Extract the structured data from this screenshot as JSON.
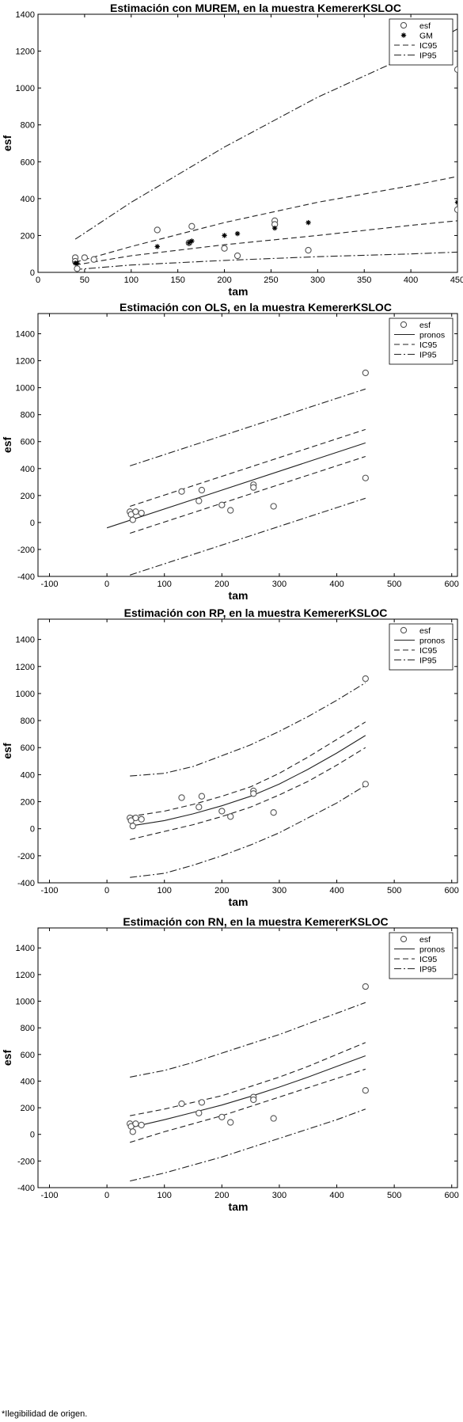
{
  "chart_data": [
    {
      "type": "scatter",
      "title": "Estimación con MUREM, en la muestra KemererKSLOC",
      "xlabel": "tam",
      "ylabel": "esf",
      "xlim": [
        0,
        450
      ],
      "ylim": [
        0,
        1400
      ],
      "xticks": [
        0,
        50,
        100,
        150,
        200,
        250,
        300,
        350,
        400,
        450
      ],
      "yticks": [
        0,
        200,
        400,
        600,
        800,
        1000,
        1200,
        1400
      ],
      "legend": {
        "placement": "top-right",
        "entries": [
          "esf",
          "GM",
          "IC95",
          "IP95"
        ]
      },
      "series": [
        {
          "name": "esf",
          "style": "circle",
          "x": [
            40,
            40,
            42,
            50,
            60,
            128,
            162,
            165,
            200,
            214,
            254,
            254,
            290,
            450,
            450
          ],
          "y": [
            80,
            60,
            20,
            80,
            70,
            230,
            160,
            250,
            130,
            90,
            280,
            260,
            120,
            1100,
            340
          ]
        },
        {
          "name": "GM",
          "style": "star",
          "x": [
            40,
            42,
            128,
            162,
            165,
            200,
            214,
            254,
            290,
            450
          ],
          "y": [
            50,
            50,
            140,
            160,
            170,
            200,
            210,
            240,
            270,
            380
          ]
        },
        {
          "name": "IC95",
          "style": "dashed",
          "x": [
            40,
            100,
            200,
            300,
            400,
            450
          ],
          "y": [
            55,
            140,
            270,
            380,
            470,
            520
          ]
        },
        {
          "name": "IC95",
          "style": "dashed",
          "x": [
            40,
            100,
            200,
            300,
            400,
            450
          ],
          "y": [
            40,
            90,
            150,
            200,
            255,
            280
          ]
        },
        {
          "name": "IP95",
          "style": "dashdot",
          "x": [
            40,
            100,
            200,
            300,
            400,
            450
          ],
          "y": [
            180,
            380,
            680,
            950,
            1180,
            1320
          ]
        },
        {
          "name": "IP95",
          "style": "dashdot",
          "x": [
            40,
            100,
            200,
            300,
            400,
            450
          ],
          "y": [
            15,
            40,
            65,
            85,
            100,
            110
          ]
        }
      ]
    },
    {
      "type": "scatter",
      "title": "Estimación con OLS, en la muestra KemererKSLOC",
      "xlabel": "tam",
      "ylabel": "esf",
      "xlim": [
        -120,
        610
      ],
      "ylim": [
        -400,
        1550
      ],
      "xticks": [
        -100,
        0,
        100,
        200,
        300,
        400,
        500,
        600
      ],
      "yticks": [
        -400,
        -200,
        0,
        200,
        400,
        600,
        800,
        1000,
        1200,
        1400
      ],
      "legend": {
        "placement": "top-right",
        "entries": [
          "esf",
          "pronos",
          "IC95",
          "IP95"
        ]
      },
      "series": [
        {
          "name": "esf",
          "style": "circle",
          "x": [
            40,
            42,
            45,
            50,
            60,
            130,
            160,
            165,
            200,
            215,
            255,
            255,
            290,
            450,
            450
          ],
          "y": [
            80,
            60,
            20,
            80,
            70,
            230,
            160,
            240,
            130,
            90,
            280,
            260,
            120,
            1110,
            330
          ]
        },
        {
          "name": "pronos",
          "style": "solid",
          "x": [
            0,
            450
          ],
          "y": [
            -40,
            590
          ]
        },
        {
          "name": "IC95",
          "style": "dashed",
          "x": [
            40,
            450
          ],
          "y": [
            120,
            690
          ]
        },
        {
          "name": "IC95",
          "style": "dashed",
          "x": [
            40,
            450
          ],
          "y": [
            -80,
            490
          ]
        },
        {
          "name": "IP95",
          "style": "dashdot",
          "x": [
            40,
            450
          ],
          "y": [
            420,
            990
          ]
        },
        {
          "name": "IP95",
          "style": "dashdot",
          "x": [
            40,
            450
          ],
          "y": [
            -390,
            180
          ]
        }
      ]
    },
    {
      "type": "scatter",
      "title": "Estimación con RP, en la muestra KemererKSLOC",
      "xlabel": "tam",
      "ylabel": "esf",
      "xlim": [
        -120,
        610
      ],
      "ylim": [
        -400,
        1550
      ],
      "xticks": [
        -100,
        0,
        100,
        200,
        300,
        400,
        500,
        600
      ],
      "yticks": [
        -400,
        -200,
        0,
        200,
        400,
        600,
        800,
        1000,
        1200,
        1400
      ],
      "legend": {
        "placement": "top-right",
        "entries": [
          "esf",
          "pronos",
          "IC95",
          "IP95"
        ]
      },
      "series": [
        {
          "name": "esf",
          "style": "circle",
          "x": [
            40,
            42,
            45,
            50,
            60,
            130,
            160,
            165,
            200,
            215,
            255,
            255,
            290,
            450,
            450
          ],
          "y": [
            80,
            60,
            20,
            80,
            70,
            230,
            160,
            240,
            130,
            90,
            280,
            260,
            120,
            1110,
            330
          ]
        },
        {
          "name": "pronos",
          "style": "solid",
          "x": [
            40,
            100,
            150,
            200,
            250,
            300,
            350,
            400,
            450
          ],
          "y": [
            20,
            60,
            110,
            170,
            240,
            330,
            440,
            560,
            690
          ]
        },
        {
          "name": "IC95",
          "style": "dashed",
          "x": [
            40,
            100,
            150,
            200,
            250,
            300,
            350,
            400,
            450
          ],
          "y": [
            90,
            130,
            180,
            240,
            310,
            410,
            530,
            660,
            790
          ]
        },
        {
          "name": "IC95",
          "style": "dashed",
          "x": [
            40,
            100,
            150,
            200,
            250,
            300,
            350,
            400,
            450
          ],
          "y": [
            -80,
            -20,
            30,
            90,
            160,
            250,
            350,
            470,
            600
          ]
        },
        {
          "name": "IP95",
          "style": "dashdot",
          "x": [
            40,
            100,
            150,
            200,
            250,
            300,
            350,
            400,
            450
          ],
          "y": [
            390,
            410,
            460,
            540,
            620,
            720,
            830,
            950,
            1080
          ]
        },
        {
          "name": "IP95",
          "style": "dashdot",
          "x": [
            40,
            100,
            150,
            200,
            250,
            300,
            350,
            400,
            450
          ],
          "y": [
            -360,
            -330,
            -270,
            -200,
            -120,
            -30,
            80,
            190,
            320
          ]
        }
      ]
    },
    {
      "type": "scatter",
      "title": "Estimación con RN, en la muestra KemererKSLOC",
      "xlabel": "tam",
      "ylabel": "esf",
      "xlim": [
        -120,
        610
      ],
      "ylim": [
        -400,
        1550
      ],
      "xticks": [
        -100,
        0,
        100,
        200,
        300,
        400,
        500,
        600
      ],
      "yticks": [
        -400,
        -200,
        0,
        200,
        400,
        600,
        800,
        1000,
        1200,
        1400
      ],
      "legend": {
        "placement": "top-right",
        "entries": [
          "esf",
          "pronos",
          "IC95",
          "IP95"
        ]
      },
      "series": [
        {
          "name": "esf",
          "style": "circle",
          "x": [
            40,
            42,
            45,
            50,
            60,
            130,
            160,
            165,
            200,
            215,
            255,
            255,
            290,
            450,
            450
          ],
          "y": [
            80,
            60,
            20,
            80,
            70,
            230,
            160,
            240,
            130,
            90,
            280,
            260,
            120,
            1110,
            330
          ]
        },
        {
          "name": "pronos",
          "style": "solid",
          "x": [
            40,
            100,
            150,
            200,
            250,
            300,
            350,
            400,
            450
          ],
          "y": [
            50,
            110,
            165,
            220,
            285,
            355,
            430,
            510,
            590
          ]
        },
        {
          "name": "IC95",
          "style": "dashed",
          "x": [
            40,
            100,
            150,
            200,
            250,
            300,
            350,
            400,
            450
          ],
          "y": [
            140,
            190,
            240,
            290,
            360,
            430,
            510,
            600,
            690
          ]
        },
        {
          "name": "IC95",
          "style": "dashed",
          "x": [
            40,
            100,
            150,
            200,
            250,
            300,
            350,
            400,
            450
          ],
          "y": [
            -60,
            20,
            80,
            140,
            210,
            280,
            350,
            420,
            490
          ]
        },
        {
          "name": "IP95",
          "style": "dashdot",
          "x": [
            40,
            100,
            150,
            200,
            250,
            300,
            350,
            400,
            450
          ],
          "y": [
            430,
            480,
            540,
            610,
            680,
            750,
            830,
            910,
            990
          ]
        },
        {
          "name": "IP95",
          "style": "dashdot",
          "x": [
            40,
            100,
            150,
            200,
            250,
            300,
            350,
            400,
            450
          ],
          "y": [
            -350,
            -290,
            -230,
            -170,
            -100,
            -30,
            40,
            110,
            190
          ]
        }
      ]
    }
  ],
  "footnote": "*Ilegibilidad de origen."
}
